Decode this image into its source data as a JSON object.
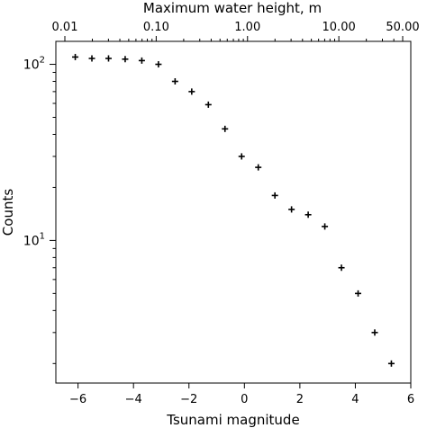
{
  "chart_data": {
    "type": "scatter",
    "xlabel": "Tsunami magnitude",
    "ylabel": "Counts",
    "top_xlabel": "Maximum water height, m",
    "xlim": [
      -6.8,
      6.0
    ],
    "ylim": [
      1.55,
      135
    ],
    "yscale": "log",
    "grid": false,
    "x_ticks": [
      -6,
      -4,
      -2,
      0,
      2,
      4,
      6
    ],
    "x_tick_labels": [
      "−6",
      "−4",
      "−2",
      "0",
      "2",
      "4",
      "6"
    ],
    "y_ticks": [
      10,
      100
    ],
    "y_tick_base": "10",
    "y_tick_exponents": [
      "1",
      "2"
    ],
    "top_ticks": [
      0.01,
      0.1,
      1.0,
      10.0,
      50.0
    ],
    "top_tick_labels": [
      "0.01",
      "0.10",
      "1.00",
      "10.00",
      "50.00"
    ],
    "marker": "+",
    "x": [
      -6.1,
      -5.5,
      -4.9,
      -4.3,
      -3.7,
      -3.1,
      -2.5,
      -1.9,
      -1.3,
      -0.7,
      -0.1,
      0.5,
      1.1,
      1.7,
      2.3,
      2.9,
      3.5,
      4.1,
      4.7,
      5.3
    ],
    "y": [
      110,
      108,
      108,
      107,
      105,
      100,
      80,
      70,
      59,
      43,
      30,
      26,
      18,
      15,
      14,
      12,
      7,
      5,
      3,
      2
    ]
  }
}
